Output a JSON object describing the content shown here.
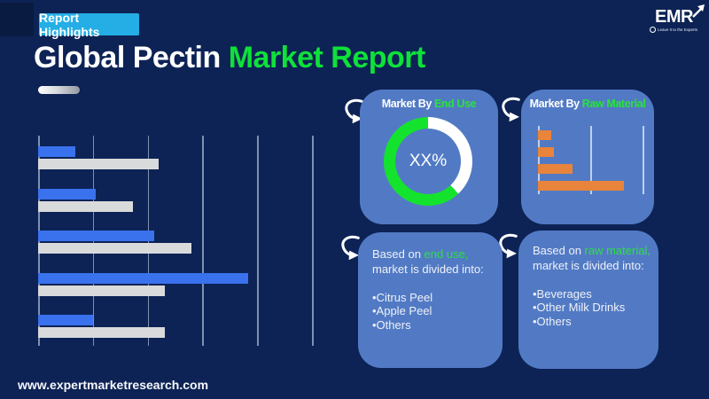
{
  "header": {
    "badge": "Report Highlights",
    "title_white": "Global Pectin ",
    "title_green": "Market Report"
  },
  "logo": {
    "text": "EMR",
    "tagline": "Leave It to the Experts"
  },
  "footer": {
    "url": "www.expertmarketresearch.com"
  },
  "colors": {
    "background": "#0d2355",
    "panel_blue": "#527ac4",
    "badge_cyan": "#24aee5",
    "title_green": "#0ee13a",
    "accent_green": "#2ae23e",
    "donut_green": "#14e32d",
    "bar_blue": "#3a72ee",
    "bar_gray": "#d9dadc",
    "bar_orange": "#e8843c"
  },
  "chart_data": [
    {
      "id": "main-decorative-bars",
      "type": "bar",
      "orientation": "horizontal",
      "title": "",
      "categories": [
        "group-1",
        "group-2",
        "group-3",
        "group-4",
        "group-5"
      ],
      "series": [
        {
          "name": "blue",
          "color": "#3a72ee",
          "values": [
            0.68,
            1.05,
            2.12,
            3.84,
            1.0
          ]
        },
        {
          "name": "gray",
          "color": "#d9dadc",
          "values": [
            2.2,
            1.73,
            2.8,
            2.32,
            2.32
          ]
        }
      ],
      "xlim": [
        0,
        5
      ],
      "gridlines": 6,
      "axis_labels": "none"
    },
    {
      "id": "end-use-donut",
      "type": "pie",
      "title_prefix": "Market By ",
      "title_highlight": "End Use",
      "center_label": "XX%",
      "slices": [
        {
          "name": "highlight",
          "value": 62,
          "color": "#14e32d"
        },
        {
          "name": "remainder",
          "value": 38,
          "color": "#ffffff"
        }
      ]
    },
    {
      "id": "raw-material-bars",
      "type": "bar",
      "orientation": "horizontal",
      "title_prefix": "Market By ",
      "title_highlight": "Raw Material",
      "categories": [
        "bar-1",
        "bar-2",
        "bar-3",
        "bar-4"
      ],
      "values": [
        0.26,
        0.31,
        0.66,
        1.64
      ],
      "color": "#e8843c",
      "xlim": [
        0,
        2
      ],
      "gridlines": 3,
      "axis_labels": "none"
    }
  ],
  "panels": {
    "end_use_list": {
      "lead_white": "Based on ",
      "lead_green": "end use,",
      "lead_rest": "market is divided into:",
      "items": [
        "•Citrus Peel",
        "•Apple Peel",
        "•Others"
      ]
    },
    "raw_material_list": {
      "lead_white": "Based on ",
      "lead_green": "raw material,",
      "lead_rest": "market is divided into:",
      "items": [
        "•Beverages",
        "•Other Milk Drinks",
        "•Others"
      ]
    }
  }
}
